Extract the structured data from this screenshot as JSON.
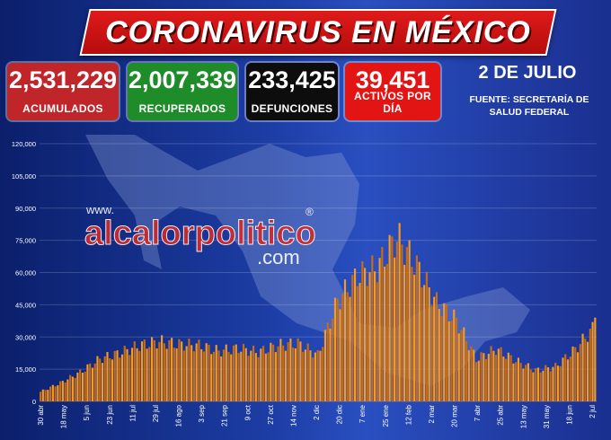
{
  "header": {
    "title": "CORONAVIRUS EN MÉXICO",
    "date": "2 DE JULIO",
    "source_line1": "FUENTE: SECRETARÍA DE",
    "source_line2": "SALUD FEDERAL"
  },
  "stats": {
    "acumulados": {
      "value": "2,531,229",
      "label": "ACUMULADOS",
      "color": "#c0252a"
    },
    "recuperados": {
      "value": "2,007,339",
      "label": "RECUPERADOS",
      "color": "#1f8c2a"
    },
    "defunciones": {
      "value": "233,425",
      "label": "DEFUNCIONES",
      "color": "#0d0d0d"
    },
    "activos": {
      "value": "39,451",
      "label": "ACTIVOS POR DÍA",
      "color": "#e31414"
    }
  },
  "watermark": {
    "line1": "www.",
    "line2": "alcalorpolitico",
    "line3": ".com",
    "mark": "®"
  },
  "colors": {
    "bar": "#f59a23",
    "bar_dark": "#c96b12"
  },
  "chart_data": {
    "type": "bar",
    "title": "",
    "xlabel": "",
    "ylabel": "",
    "ylim": [
      0,
      120000
    ],
    "y_ticks": [
      0,
      15000,
      30000,
      45000,
      60000,
      75000,
      90000,
      105000,
      120000
    ],
    "y_tick_labels": [
      "0",
      "15,000",
      "30,000",
      "45,000",
      "60,000",
      "75,000",
      "90,000",
      "105,000",
      "120,000"
    ],
    "grid": true,
    "x_tick_labels": [
      "30 abr",
      "18 may",
      "5 jun",
      "23 jun",
      "11 jul",
      "29 jul",
      "16 ago",
      "3 sep",
      "21 sep",
      "9 oct",
      "27 oct",
      "14 nov",
      "2 dic",
      "20 dic",
      "7 ene",
      "25 ene",
      "12 feb",
      "2 mar",
      "20 mar",
      "7 abr",
      "25 abr",
      "13 may",
      "31 may",
      "18 jun",
      "2 jul"
    ],
    "values": [
      5000,
      9500,
      15000,
      22000,
      25000,
      29000,
      31000,
      29500,
      29000,
      26000,
      27500,
      25500,
      29000,
      30000,
      24000,
      52000,
      65000,
      69000,
      85000,
      70000,
      51000,
      42000,
      22000,
      27000,
      21000,
      16000,
      18000,
      27000,
      39000
    ],
    "notes": "Values are approximate, estimated from the daily active-case bars; one value per ~12 days between 30 abr and 2 jul."
  }
}
